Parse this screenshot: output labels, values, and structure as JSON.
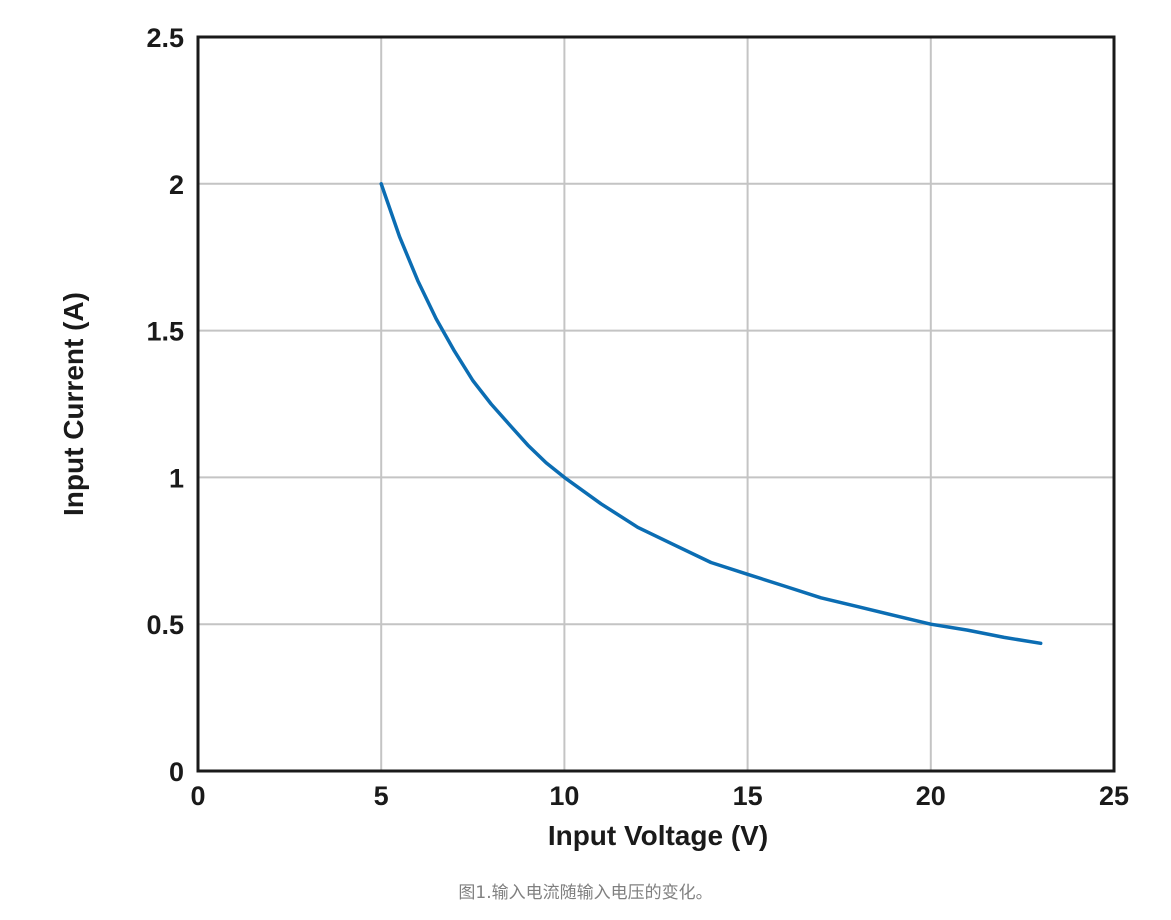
{
  "chart_data": {
    "type": "line",
    "xlabel": "Input Voltage (V)",
    "ylabel": "Input Current (A)",
    "xlim": [
      0,
      25
    ],
    "ylim": [
      0,
      2.5
    ],
    "xticks": [
      0,
      5,
      10,
      15,
      20,
      25
    ],
    "yticks": [
      0,
      0.5,
      1,
      1.5,
      2,
      2.5
    ],
    "xtick_labels": [
      "0",
      "5",
      "10",
      "15",
      "20",
      "25"
    ],
    "ytick_labels": [
      "0",
      "0.5",
      "1",
      "1.5",
      "2",
      "2.5"
    ],
    "grid": true,
    "series": [
      {
        "color": "#0b6db3",
        "x": [
          5,
          5.5,
          6,
          6.5,
          7,
          7.5,
          8,
          8.5,
          9,
          9.5,
          10,
          11,
          12,
          13,
          14,
          15,
          16,
          17,
          18,
          19,
          20,
          21,
          22,
          23
        ],
        "y": [
          2.0,
          1.82,
          1.67,
          1.54,
          1.43,
          1.33,
          1.25,
          1.18,
          1.11,
          1.05,
          1.0,
          0.91,
          0.83,
          0.77,
          0.71,
          0.67,
          0.63,
          0.59,
          0.56,
          0.53,
          0.5,
          0.48,
          0.455,
          0.435
        ]
      }
    ]
  },
  "caption": "图1.输入电流随输入电压的变化。"
}
